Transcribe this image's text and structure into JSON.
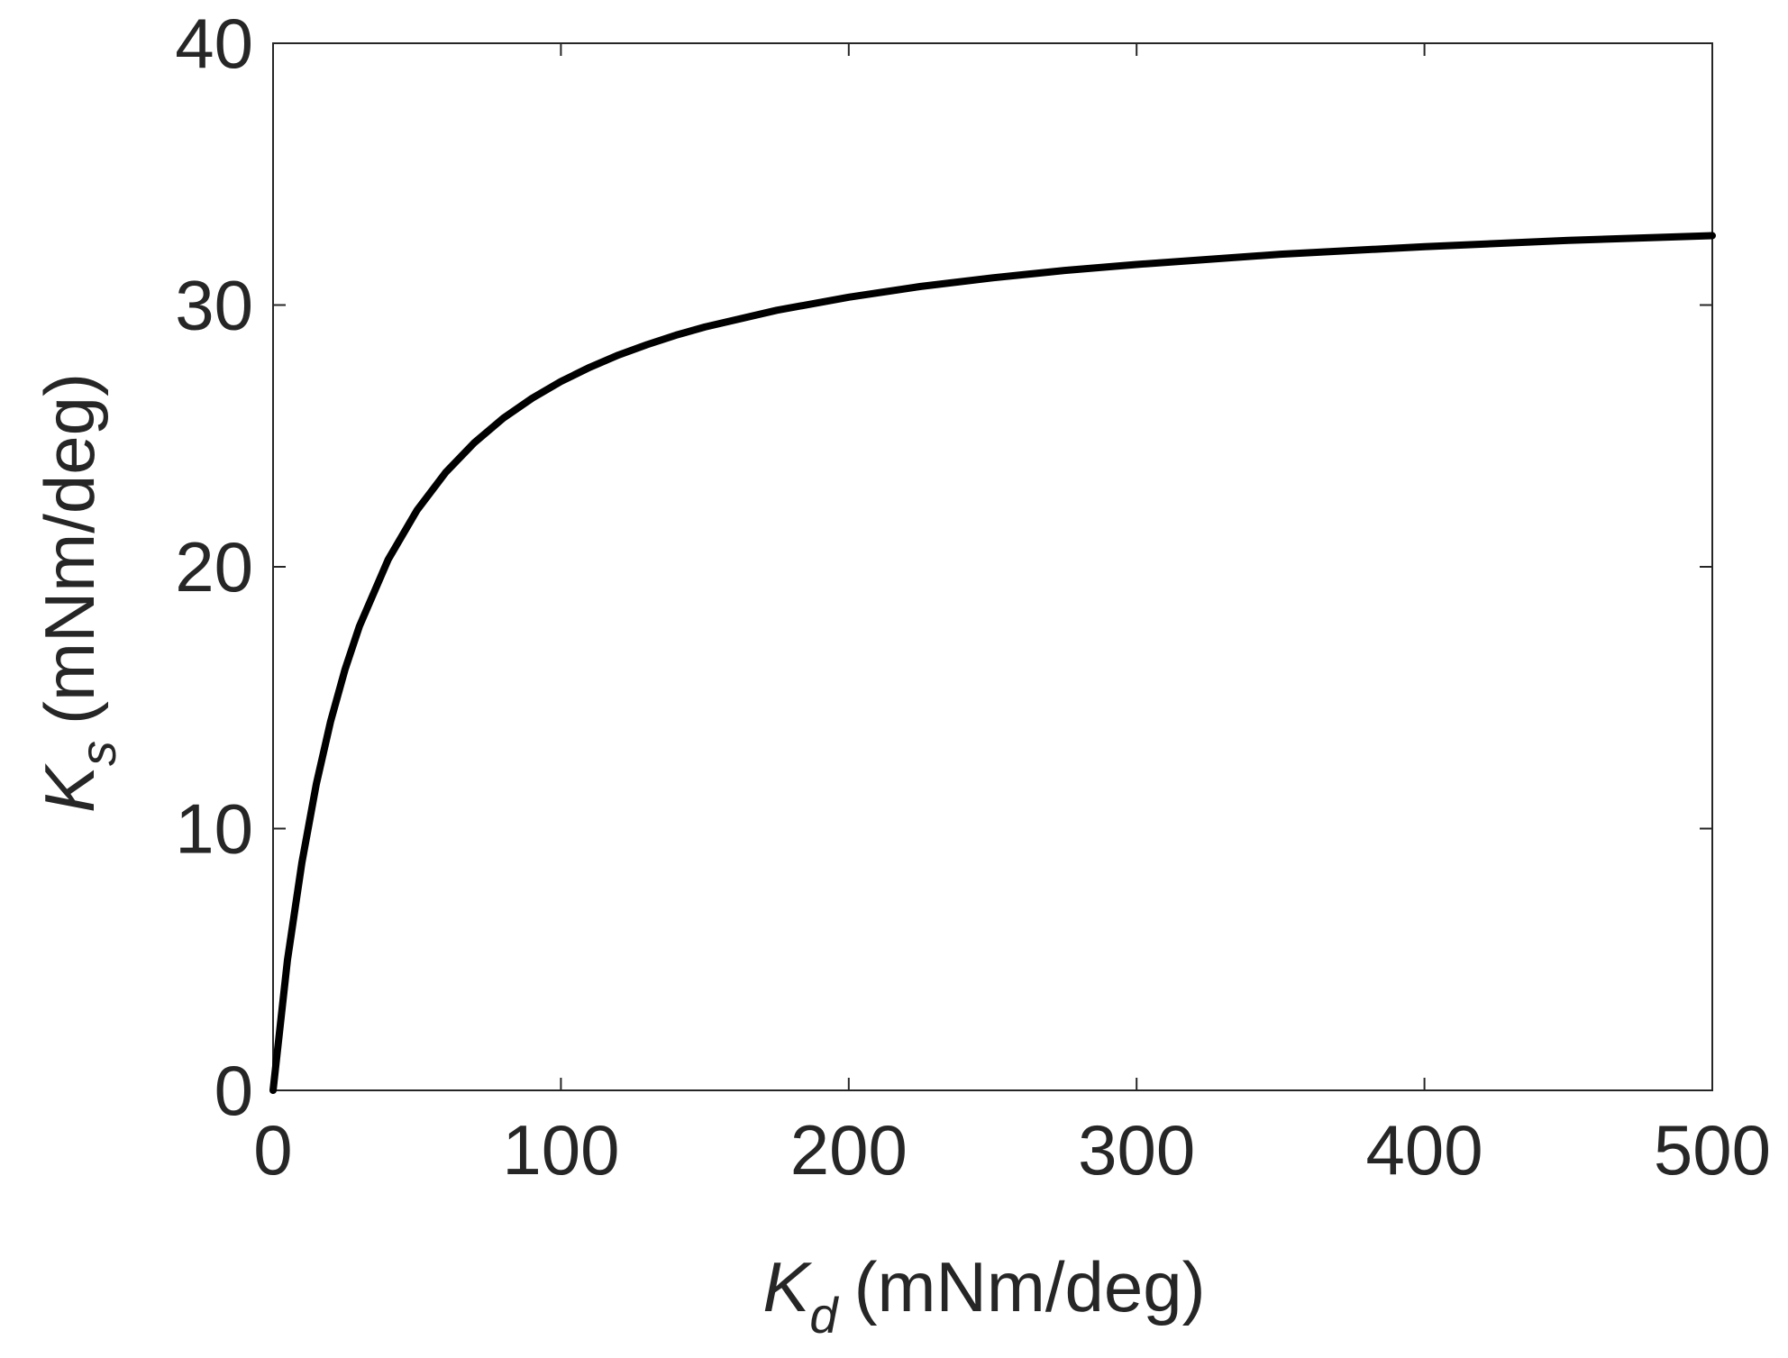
{
  "chart_data": {
    "type": "line",
    "title": "",
    "xlabel": {
      "symbol": "K",
      "subscript": "d",
      "units": "(mNm/deg)"
    },
    "ylabel": {
      "symbol": "K",
      "subscript": "s",
      "units": "(mNm/deg)"
    },
    "xlim": [
      0,
      500
    ],
    "ylim": [
      0,
      40
    ],
    "xticks": [
      0,
      100,
      200,
      300,
      400,
      500
    ],
    "yticks": [
      0,
      10,
      20,
      30,
      40
    ],
    "xtick_labels": [
      "0",
      "100",
      "200",
      "300",
      "400",
      "500"
    ],
    "ytick_labels": [
      "0",
      "10",
      "20",
      "30",
      "40"
    ],
    "grid": false,
    "series": [
      {
        "color": "#000000",
        "x": [
          0,
          5,
          10,
          15,
          20,
          25,
          30,
          40,
          50,
          60,
          70,
          80,
          90,
          100,
          110,
          120,
          130,
          140,
          150,
          175,
          200,
          225,
          250,
          275,
          300,
          350,
          400,
          450,
          500
        ],
        "y": [
          0,
          4.98,
          8.69,
          11.69,
          14.1,
          16.08,
          17.73,
          20.28,
          22.16,
          23.61,
          24.75,
          25.68,
          26.44,
          27.08,
          27.62,
          28.09,
          28.49,
          28.85,
          29.16,
          29.8,
          30.3,
          30.71,
          31.04,
          31.32,
          31.55,
          31.94,
          32.23,
          32.47,
          32.65
        ]
      }
    ]
  }
}
